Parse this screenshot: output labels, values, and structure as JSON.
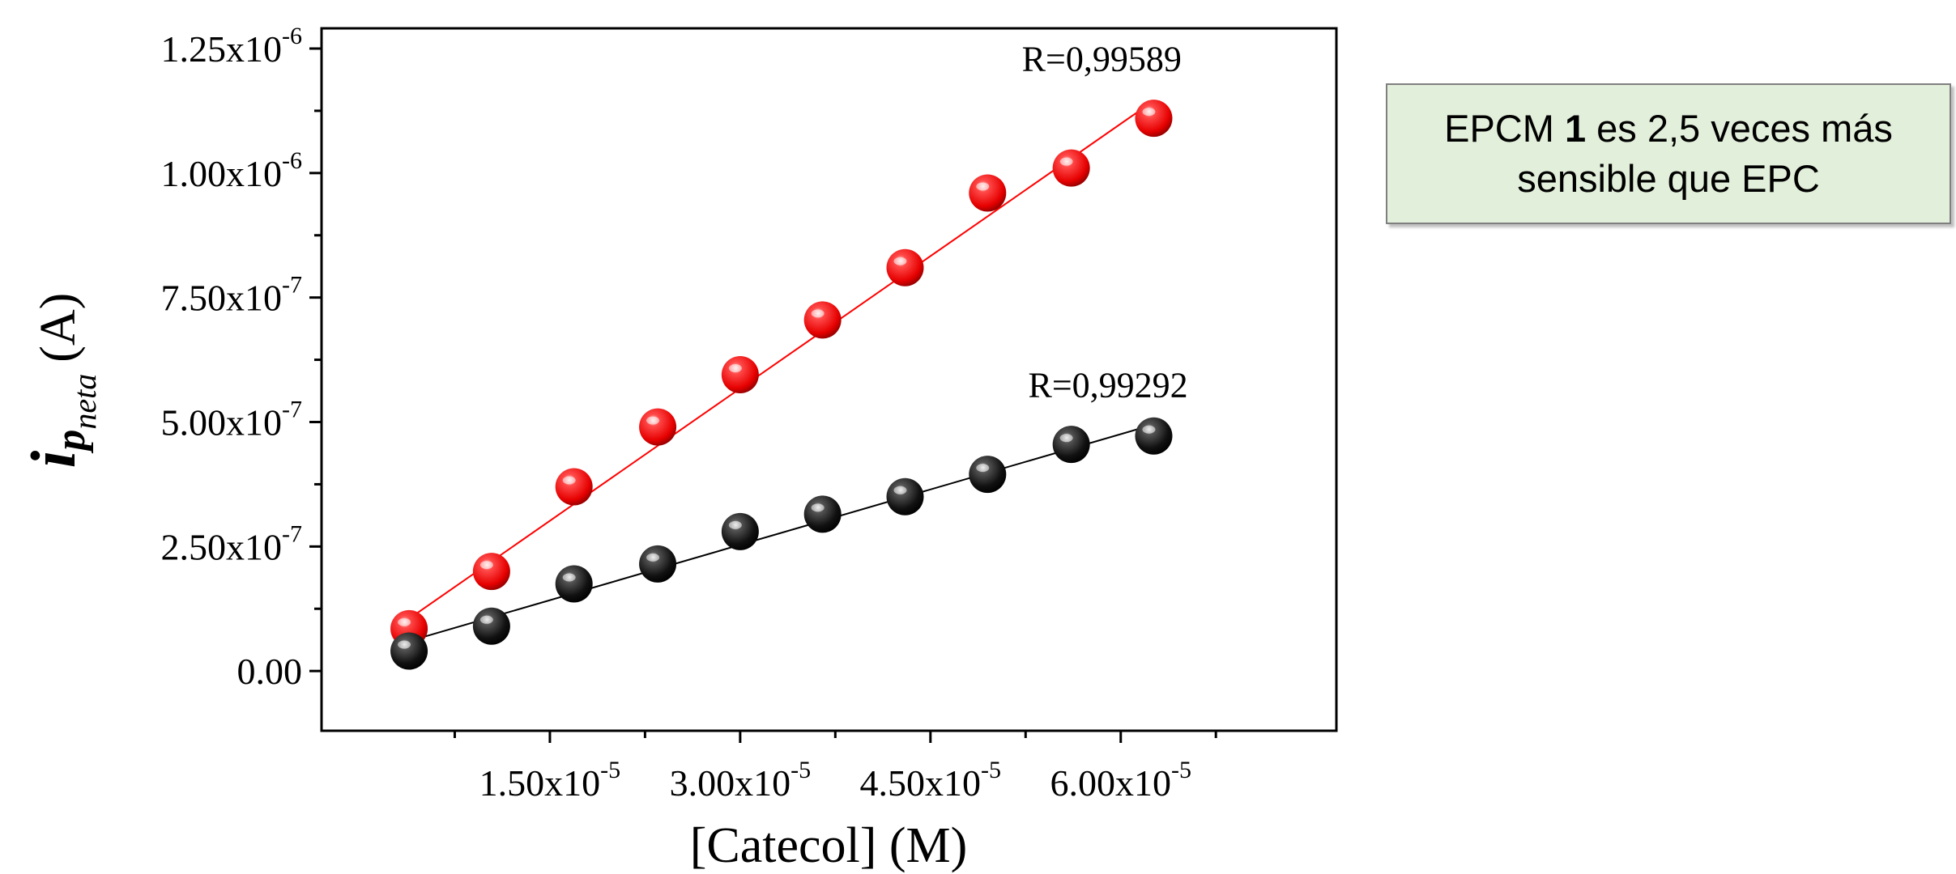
{
  "chart_data": {
    "type": "scatter",
    "xlabel": "[Catecol] (M)",
    "ylabel": {
      "main": "i",
      "sub": "p",
      "subsub": "neta",
      "unit": "(A)"
    },
    "xlim": [
      -3e-06,
      7.7e-05
    ],
    "ylim": [
      -1.2e-07,
      1.25e-06
    ],
    "x_ticks": [
      {
        "value": 1.5e-05,
        "mantissa": "1.50x10",
        "exponent": "-5"
      },
      {
        "value": 3e-05,
        "mantissa": "3.00x10",
        "exponent": "-5"
      },
      {
        "value": 4.5e-05,
        "mantissa": "4.50x10",
        "exponent": "-5"
      },
      {
        "value": 6e-05,
        "mantissa": "6.00x10",
        "exponent": "-5"
      }
    ],
    "y_ticks": [
      {
        "value": 0,
        "mantissa": "0.00",
        "exponent": ""
      },
      {
        "value": 2.5e-07,
        "mantissa": "2.50x10",
        "exponent": "-7"
      },
      {
        "value": 5e-07,
        "mantissa": "5.00x10",
        "exponent": "-7"
      },
      {
        "value": 7.5e-07,
        "mantissa": "7.50x10",
        "exponent": "-7"
      },
      {
        "value": 1e-06,
        "mantissa": "1.00x10",
        "exponent": "-6"
      },
      {
        "value": 1.25e-06,
        "mantissa": "1.25x10",
        "exponent": "-6"
      }
    ],
    "x": [
      3.9e-06,
      1.04e-05,
      1.69e-05,
      2.35e-05,
      3e-05,
      3.65e-05,
      4.3e-05,
      4.95e-05,
      5.61e-05,
      6.26e-05
    ],
    "series": [
      {
        "color": "#ff0000",
        "values": [
          8.5e-08,
          2e-07,
          3.7e-07,
          4.9e-07,
          5.95e-07,
          7.05e-07,
          8.1e-07,
          9.6e-07,
          1.01e-06,
          1.11e-06
        ],
        "fit_line": {
          "x": [
            3.9e-06,
            6.26e-05
          ],
          "y": [
            1.05e-07,
            1.145e-06
          ]
        },
        "annotation": {
          "text": "R=0,99589",
          "x": 5.85e-05,
          "y": 1.205e-06
        }
      },
      {
        "color": "#000000",
        "values": [
          4e-08,
          9e-08,
          1.75e-07,
          2.15e-07,
          2.8e-07,
          3.15e-07,
          3.5e-07,
          3.95e-07,
          4.55e-07,
          4.72e-07
        ],
        "fit_line": {
          "x": [
            3.9e-06,
            6.26e-05
          ],
          "y": [
            6e-08,
            4.95e-07
          ]
        },
        "annotation": {
          "text": "R=0,99292",
          "x": 5.9e-05,
          "y": 5.5e-07
        }
      }
    ]
  },
  "note": {
    "before": "EPCM ",
    "bold": "1",
    "after": " es 2,5 veces más",
    "line2": "sensible que EPC"
  }
}
